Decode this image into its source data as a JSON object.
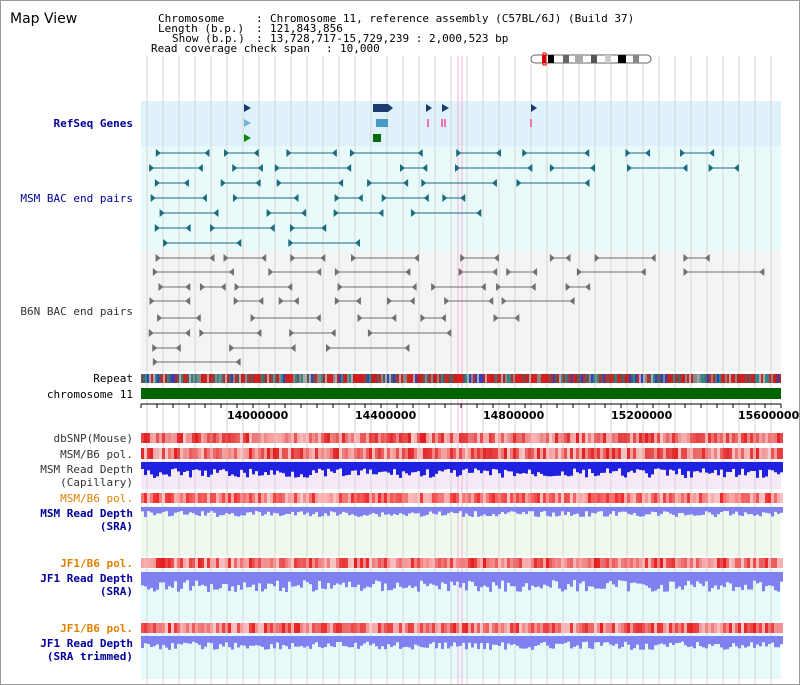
{
  "title": "Map View",
  "header": {
    "chromosome_label": "Chromosome",
    "chromosome_value": "Chromosome 11, reference assembly (C57BL/6J) (Build 37)",
    "length_label": "Length (b.p.)",
    "length_value": "121,843,856",
    "show_label": "Show (b.p.)",
    "show_value": "13,728,717-15,729,239 : 2,000,523 bp",
    "coverage_label": "Read coverage check span",
    "coverage_value": "10,000",
    "separator": ":"
  },
  "tracks": {
    "refseq": "RefSeq Genes",
    "msm_bac": "MSM BAC end pairs",
    "b6n_bac": "B6N BAC end pairs",
    "repeat": "Repeat",
    "chromosome": "chromosome 11",
    "dbsnp": "dbSNP(Mouse)",
    "msm_b6_pol": "MSM/B6 pol.",
    "msm_depth_cap_1": "MSM Read Depth",
    "msm_depth_cap_2": "(Capillary)",
    "msm_b6_pol2": "MSM/B6 pol.",
    "msm_depth_sra_1": "MSM Read Depth",
    "msm_depth_sra_2": "(SRA)",
    "jf1_b6_pol": "JF1/B6 pol.",
    "jf1_depth_sra_1": "JF1 Read Depth",
    "jf1_depth_sra_2": "(SRA)",
    "jf1_b6_pol2": "JF1/B6 pol.",
    "jf1_depth_trim_1": "JF1 Read Depth",
    "jf1_depth_trim_2": "(SRA trimmed)"
  },
  "axis": {
    "ticks": [
      "14000000",
      "14400000",
      "14800000",
      "15200000",
      "15600000"
    ]
  },
  "colors": {
    "label_black": "#000000",
    "label_blue": "#000099",
    "label_orange": "#e08000",
    "refseq_bg": "#dff2fb",
    "msm_bac_bg": "#e9fafa",
    "b6n_bac_bg": "#f4f4f4",
    "chromosome_green": "#006400",
    "depth_blue": "#2020e0",
    "depth_light": "#8080f0"
  }
}
